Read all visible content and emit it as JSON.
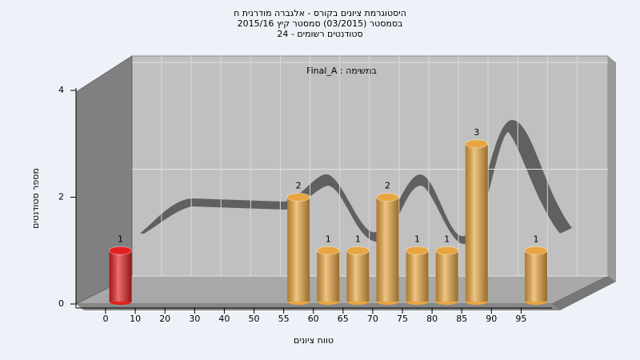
{
  "chart_data": {
    "type": "bar",
    "title": "היסטוגרמת ציונים בקורס - אלגברה מודרנית ח",
    "subtitle": "בסמסטר  (03/2015)  סמסטר קיץ 2015/16",
    "subtitle2": "סטודנטים רשומים - 24",
    "annotation": "Final_A : במשימה",
    "x_label": "טווח ציונים",
    "y_label": "מספר סטודנטים",
    "categories": [
      "0",
      "10",
      "20",
      "30",
      "40",
      "50",
      "55",
      "60",
      "65",
      "70",
      "75",
      "80",
      "85",
      "90",
      "95"
    ],
    "values": [
      1,
      0,
      0,
      0,
      0,
      0,
      2,
      1,
      1,
      2,
      1,
      1,
      3,
      0,
      1
    ],
    "colors": [
      "#e32020",
      "#e8a640",
      "#e8a640",
      "#e8a640",
      "#e8a640",
      "#e8a640",
      "#e8a640",
      "#e8a640",
      "#e8a640",
      "#e8a640",
      "#e8a640",
      "#e8a640",
      "#e8a640",
      "#e8a640",
      "#e8a640"
    ],
    "ylim": [
      0,
      4
    ],
    "yticks": [
      0,
      2,
      4
    ],
    "grid": true
  }
}
